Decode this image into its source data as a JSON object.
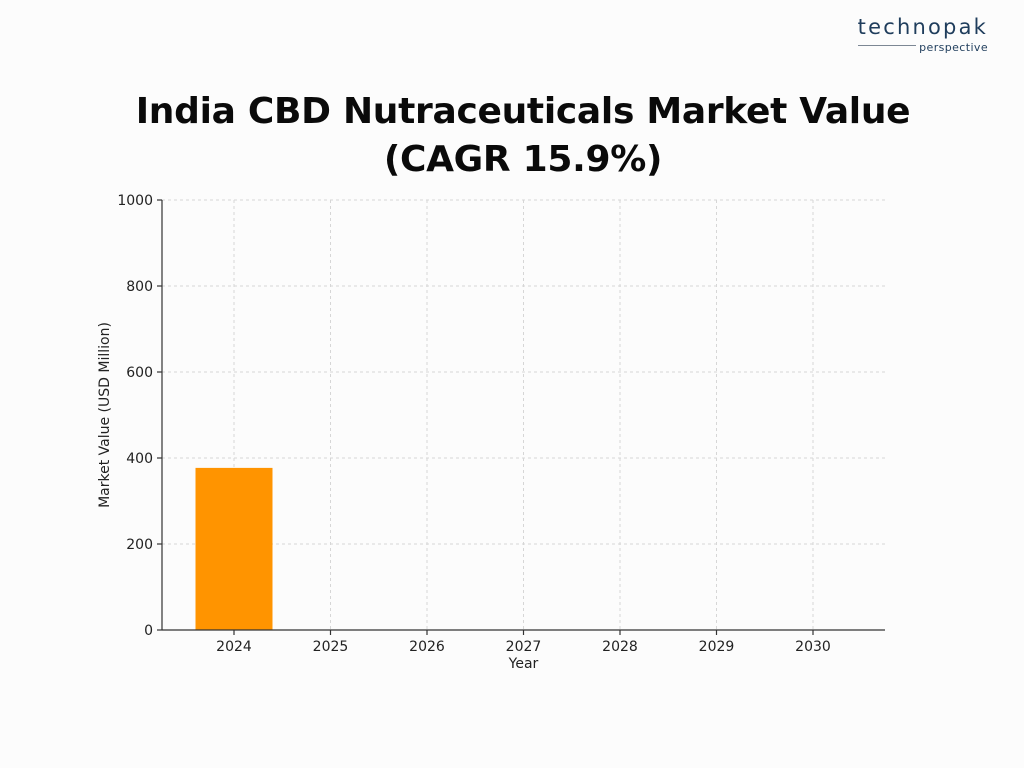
{
  "brand": {
    "name": "technopak",
    "tagline": "perspective"
  },
  "chart_data": {
    "type": "bar",
    "title": "India CBD Nutraceuticals Market Value",
    "subtitle": "(CAGR 15.9%)",
    "xlabel": "Year",
    "ylabel": "Market Value (USD Million)",
    "categories": [
      "2024",
      "2025",
      "2026",
      "2027",
      "2028",
      "2029",
      "2030"
    ],
    "values": [
      377,
      null,
      null,
      null,
      null,
      null,
      null
    ],
    "ylim": [
      0,
      1000
    ],
    "yticks": [
      0,
      200,
      400,
      600,
      800,
      1000
    ],
    "grid": true,
    "bar_color": "#ff9400"
  }
}
